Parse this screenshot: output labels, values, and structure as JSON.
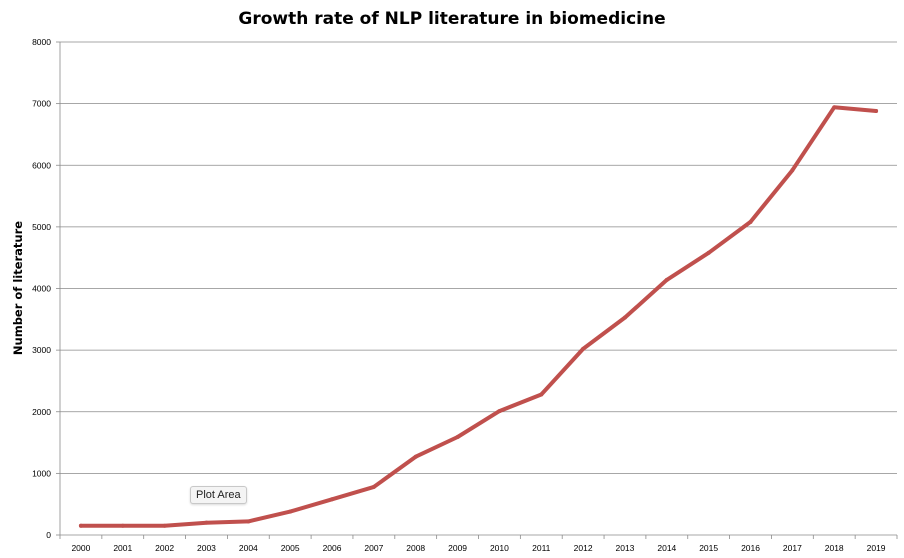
{
  "chart_data": {
    "type": "line",
    "title": "Growth rate of NLP literature in biomedicine",
    "xlabel": "",
    "ylabel": "Number of literature",
    "categories": [
      "2000",
      "2001",
      "2002",
      "2003",
      "2004",
      "2005",
      "2006",
      "2007",
      "2008",
      "2009",
      "2010",
      "2011",
      "2012",
      "2013",
      "2014",
      "2015",
      "2016",
      "2017",
      "2018",
      "2019"
    ],
    "series": [
      {
        "values": [
          150,
          150,
          150,
          200,
          220,
          380,
          580,
          780,
          1270,
          1590,
          2010,
          2280,
          3020,
          3530,
          4140,
          4580,
          5080,
          5920,
          6940,
          6880
        ],
        "color": "#c0504d"
      }
    ],
    "ylim": [
      0,
      8000
    ],
    "yticks": [
      0,
      1000,
      2000,
      3000,
      4000,
      5000,
      6000,
      7000,
      8000
    ],
    "grid": "horizontal",
    "legend": "none"
  },
  "tooltip": {
    "text": "Plot Area"
  }
}
